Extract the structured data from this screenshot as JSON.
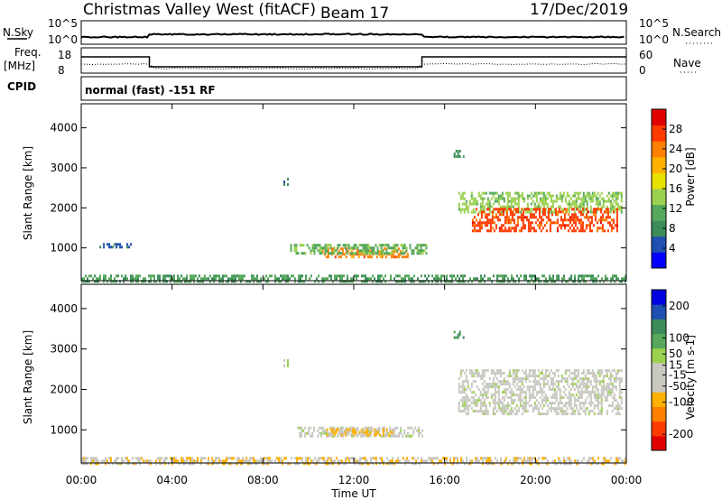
{
  "header": {
    "station": "Christmas Valley West (fitACF)",
    "beam": "Beam 17",
    "date": "17/Dec/2019"
  },
  "nsky_panel": {
    "left_label": "N.Sky",
    "right_label": "N.Search",
    "left_ticks": [
      "10^5",
      "10^0"
    ],
    "right_ticks": [
      "10^5",
      "10^0"
    ]
  },
  "freq_panel": {
    "left_label_top": "Freq.",
    "left_label_unit": "[MHz]",
    "right_label": "Nave",
    "left_ticks": [
      "18",
      "8"
    ],
    "right_ticks": [
      "60",
      "0"
    ],
    "cpid_label": "CPID",
    "cpid_text": "normal (fast) -151 RF"
  },
  "colors": {
    "power_scale": [
      "#0000ff",
      "#1f4fb0",
      "#3c8c5a",
      "#55a85c",
      "#9bd14f",
      "#e8e000",
      "#ffb000",
      "#ff7f00",
      "#ff3a00",
      "#e00000"
    ],
    "velocity_scale": [
      "#e00000",
      "#ff3a00",
      "#ff7f00",
      "#ffb000",
      "#c8c8c0",
      "#c8c8c0",
      "#9bd14f",
      "#55a85c",
      "#3c8c5a",
      "#1f4fb0",
      "#0000e0"
    ],
    "accent_step": "#000000"
  },
  "chart_data": [
    {
      "type": "heatmap",
      "name": "power",
      "ylabel": "Slant Range [km]",
      "xlabel": "",
      "x_ticks": [
        "00:00",
        "04:00",
        "08:00",
        "12:00",
        "16:00",
        "20:00",
        "00:00"
      ],
      "x_range_hours": [
        0,
        24
      ],
      "y_ticks": [
        1000,
        2000,
        3000,
        4000
      ],
      "ylim": [
        180,
        4600
      ],
      "colorbar": {
        "label": "Power [dB]",
        "ticks": [
          4,
          8,
          12,
          16,
          20,
          24,
          28
        ],
        "range": [
          0,
          32
        ]
      },
      "regions": [
        {
          "t0": 0.0,
          "t1": 24.0,
          "r0": 180,
          "r1": 330,
          "level": 10
        },
        {
          "t0": 10.6,
          "t1": 14.4,
          "r0": 740,
          "r1": 1010,
          "level": 24
        },
        {
          "t0": 9.2,
          "t1": 15.2,
          "r0": 880,
          "r1": 1100,
          "level": 12
        },
        {
          "t0": 16.6,
          "t1": 23.8,
          "r0": 1900,
          "r1": 2400,
          "level": 14
        },
        {
          "t0": 17.2,
          "t1": 23.6,
          "r0": 1400,
          "r1": 2000,
          "level": 27
        },
        {
          "t0": 16.4,
          "t1": 16.8,
          "r0": 3250,
          "r1": 3450,
          "level": 10
        },
        {
          "t0": 8.9,
          "t1": 9.1,
          "r0": 2550,
          "r1": 2750,
          "level": 8
        },
        {
          "t0": 0.8,
          "t1": 2.2,
          "r0": 1030,
          "r1": 1120,
          "level": 5
        }
      ]
    },
    {
      "type": "heatmap",
      "name": "velocity",
      "ylabel": "Slant Range [km]",
      "xlabel": "Time UT",
      "x_ticks": [
        "00:00",
        "04:00",
        "08:00",
        "12:00",
        "16:00",
        "20:00",
        "00:00"
      ],
      "x_range_hours": [
        0,
        24
      ],
      "y_ticks": [
        1000,
        2000,
        3000,
        4000
      ],
      "ylim": [
        180,
        4600
      ],
      "colorbar": {
        "label": "Velocity [m s-1]",
        "ticks": [
          200,
          100,
          50,
          15,
          -15,
          -50,
          -100,
          -200
        ],
        "range": [
          -250,
          250
        ]
      },
      "regions": [
        {
          "t0": 0.0,
          "t1": 24.0,
          "r0": 180,
          "r1": 330,
          "level": -60
        },
        {
          "t0": 9.5,
          "t1": 15.0,
          "r0": 820,
          "r1": 1080,
          "level": 0
        },
        {
          "t0": 10.8,
          "t1": 13.8,
          "r0": 860,
          "r1": 1040,
          "level": -70
        },
        {
          "t0": 16.6,
          "t1": 23.8,
          "r0": 1400,
          "r1": 2500,
          "level": 0
        },
        {
          "t0": 16.4,
          "t1": 16.8,
          "r0": 3250,
          "r1": 3450,
          "level": 120
        },
        {
          "t0": 8.9,
          "t1": 9.1,
          "r0": 2550,
          "r1": 2750,
          "level": 40
        }
      ]
    }
  ]
}
